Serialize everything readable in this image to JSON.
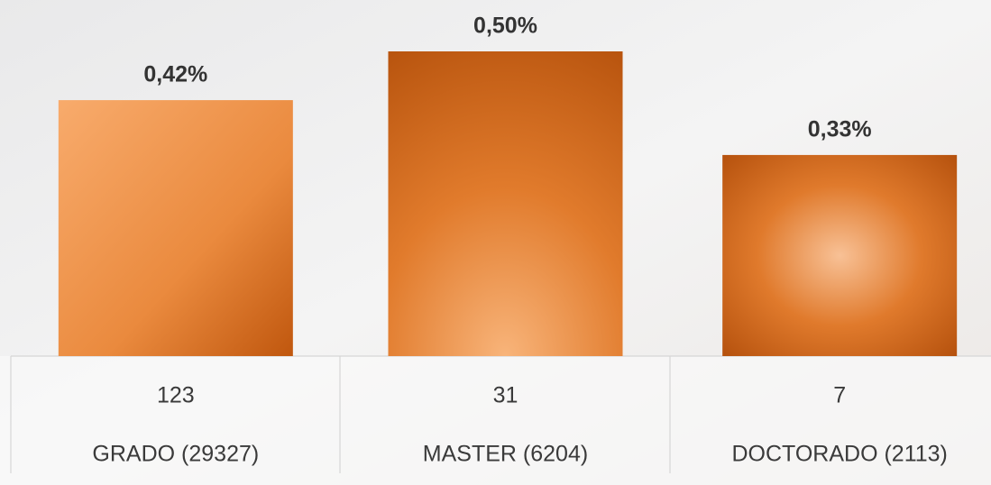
{
  "chart_data": {
    "type": "bar",
    "categories": [
      "GRADO (29327)",
      "MASTER (6204)",
      "DOCTORADO (2113)"
    ],
    "counts": [
      123,
      31,
      7
    ],
    "values": [
      0.42,
      0.5,
      0.33
    ],
    "value_labels": [
      "0,42%",
      "0,50%",
      "0,33%"
    ]
  }
}
